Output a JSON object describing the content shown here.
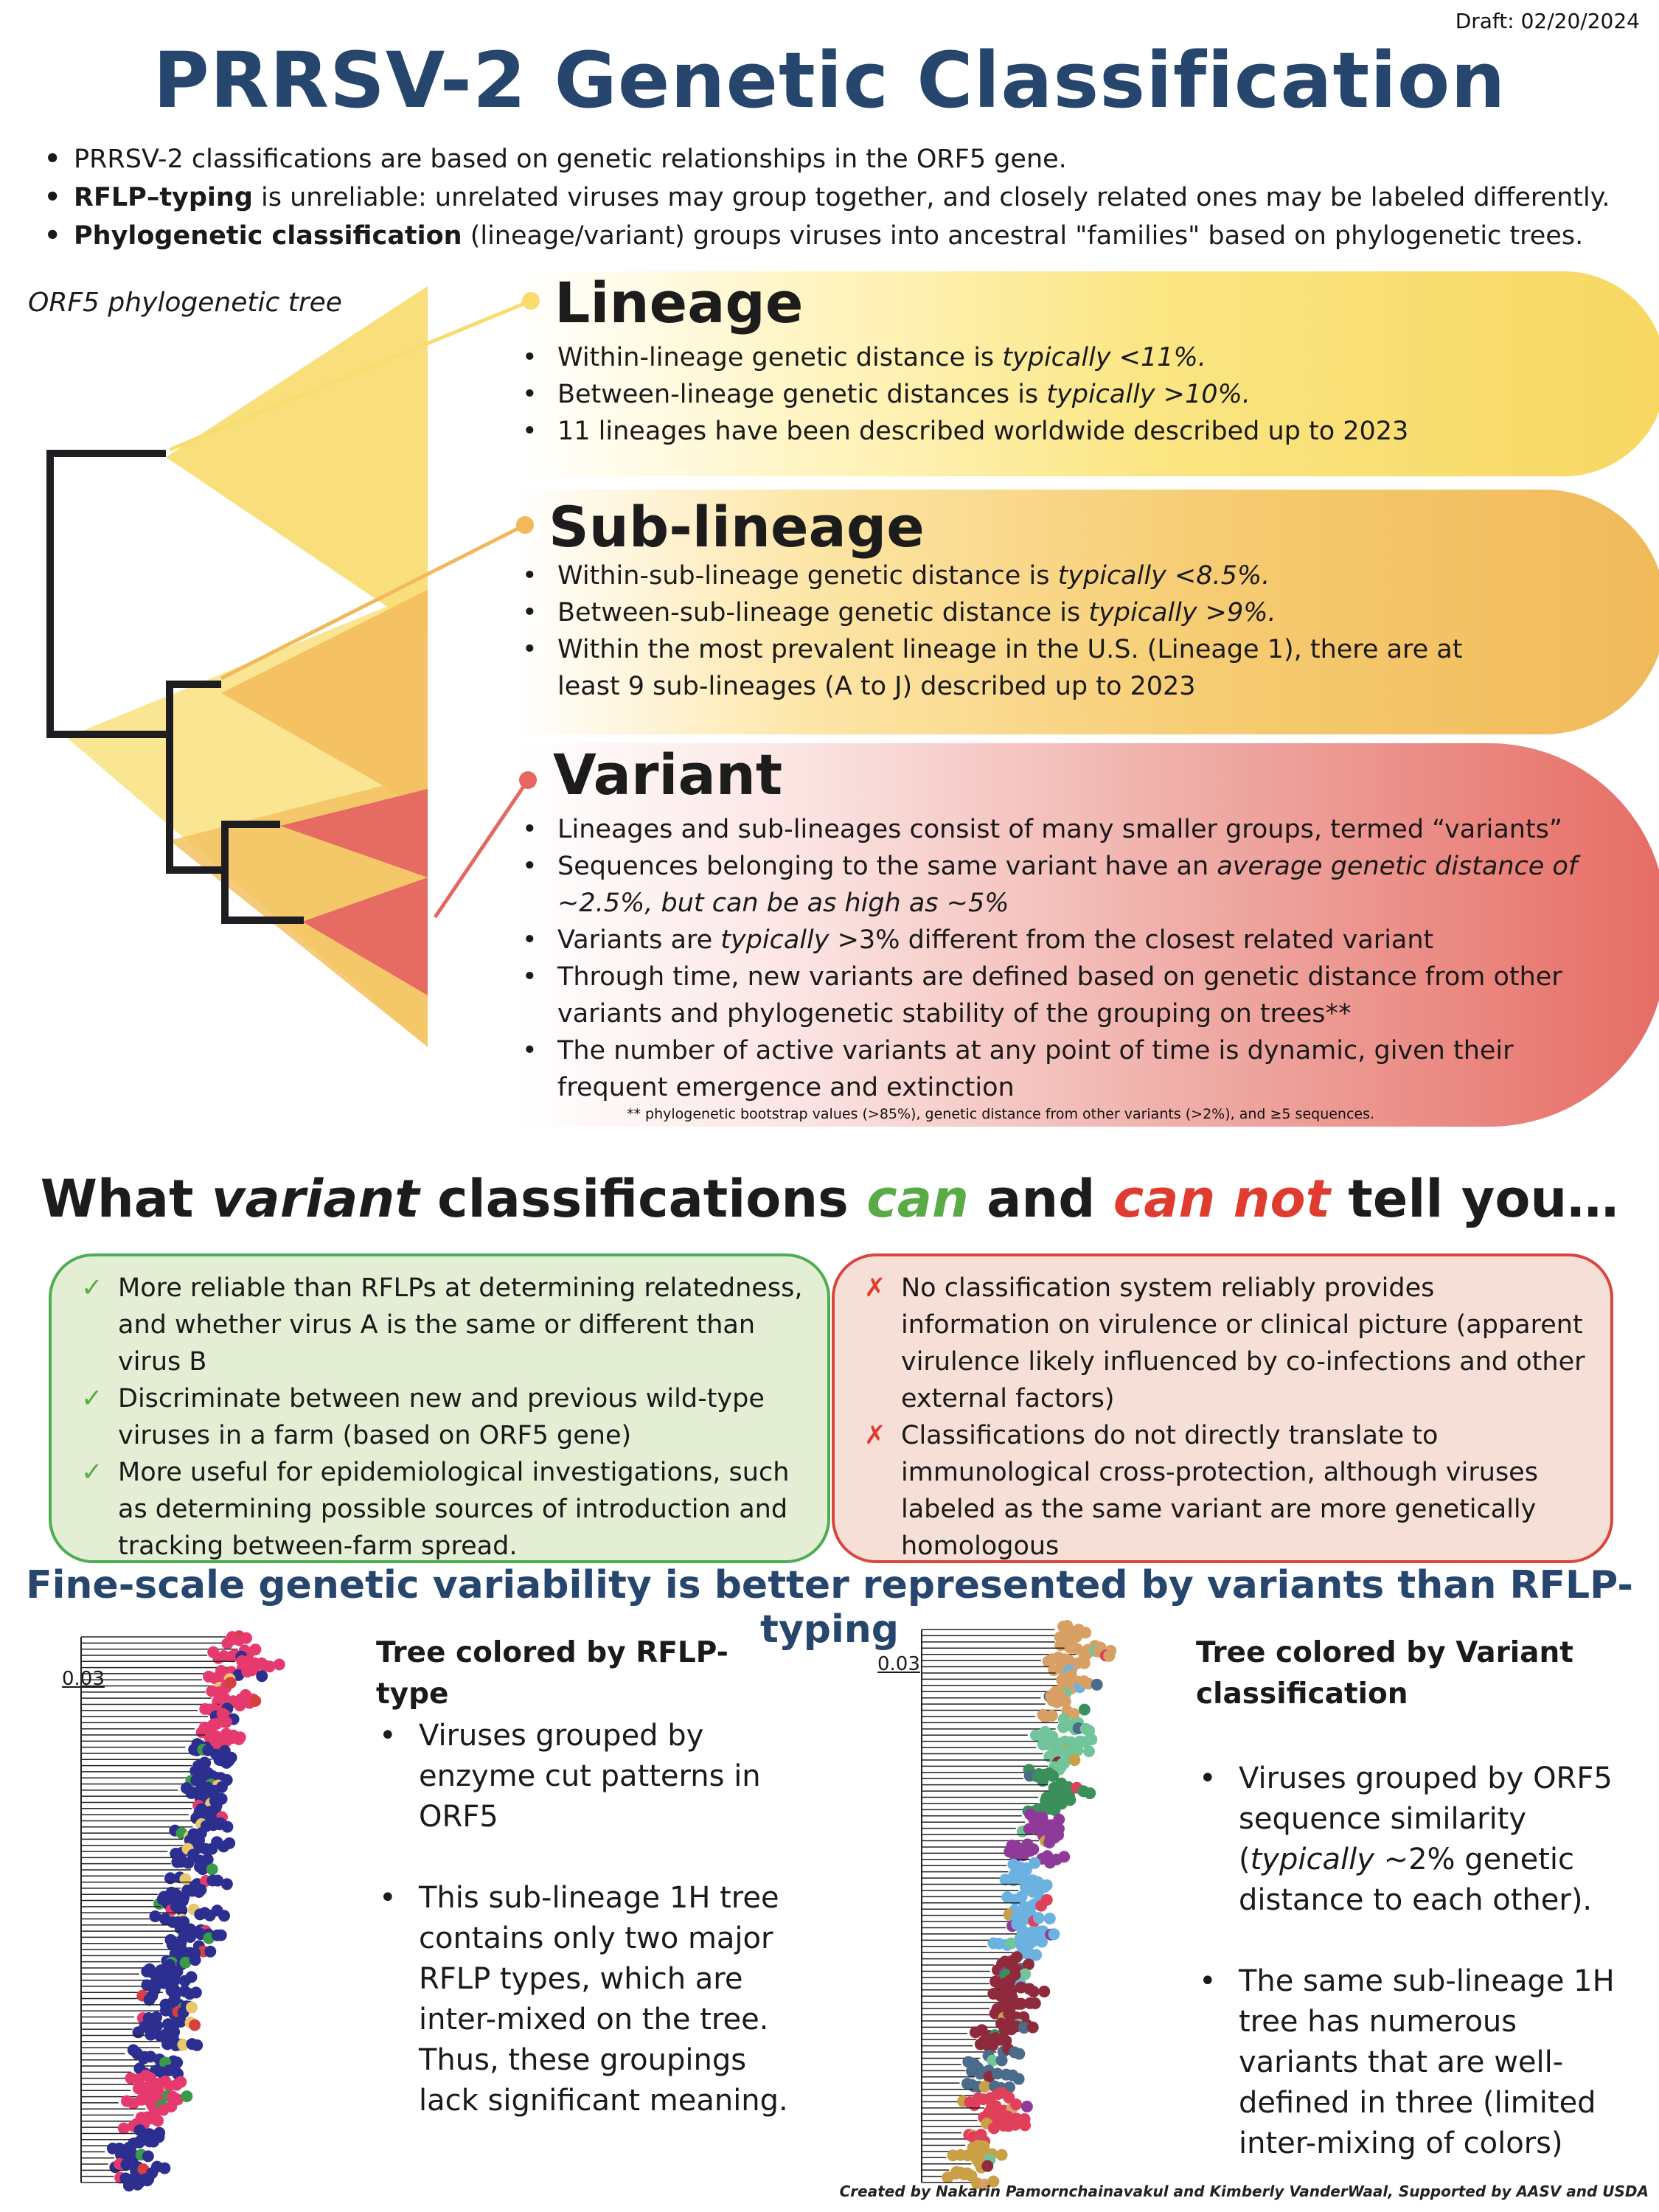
{
  "draft": "Draft: 02/20/2024",
  "title": "PRRSV-2 Genetic Classification",
  "intro": [
    {
      "bold": "",
      "text": "PRRSV-2 classifications are based on genetic relationships in the ORF5 gene."
    },
    {
      "bold": "RFLP–typing",
      "text": " is unreliable: unrelated viruses may group together, and closely related ones may be labeled differently."
    },
    {
      "bold": "Phylogenetic classification",
      "text": " (lineage/variant) groups viruses into ancestral \"families\" based on phylogenetic trees."
    }
  ],
  "tree_label": "ORF5 phylogenetic tree",
  "lineage": {
    "title": "Lineage",
    "b1_pre": "Within-lineage genetic distance is ",
    "b1_it": "typically <11%.",
    "b2_pre": "Between-lineage genetic distances is ",
    "b2_it": "typically >10%.",
    "b3": "11 lineages have been described worldwide described up to 2023"
  },
  "sublineage": {
    "title": "Sub-lineage",
    "b1_pre": "Within-sub-lineage genetic distance is ",
    "b1_it": "typically <8.5%.",
    "b2_pre": "Between-sub-lineage genetic distance is ",
    "b2_it": "typically >9%.",
    "b3": "Within the most prevalent lineage in the U.S. (Lineage 1), there are at least 9 sub-lineages (A to J) described up to 2023"
  },
  "variant": {
    "title": "Variant",
    "b1": "Lineages and sub-lineages consist of many smaller groups, termed “variants”",
    "b2_pre": "Sequences belonging to the same variant have an ",
    "b2_it": "average genetic distance of ~2.5%, but can be as high as ~5%",
    "b3_pre": "Variants are ",
    "b3_it": "typically",
    "b3_post": "  >3% different from the closest related variant",
    "b4": "Through time, new variants are defined based on genetic distance from other variants and phylogenetic stability of the grouping on trees**",
    "b5": "The number of active variants at any point of time is dynamic, given their frequent emergence and extinction",
    "footnote": "** phylogenetic bootstrap values (>85%), genetic distance from other variants (>2%), and ≥5 sequences."
  },
  "what_heading": {
    "p1": "What ",
    "p2": "variant",
    "p3": " classifications  ",
    "can": "can",
    "p4": " and ",
    "cannot": "can not",
    "p5": " tell you…"
  },
  "can_items": [
    "More reliable than RFLPs  at determining relatedness, and whether virus A is the same or different than virus B",
    "Discriminate between new and previous wild-type viruses in a farm (based on ORF5 gene)",
    "More useful for epidemiological investigations, such as determining possible sources of introduction and tracking  between-farm spread."
  ],
  "cannot_items": [
    "No classification system reliably provides information on virulence or clinical picture (apparent virulence likely influenced by co-infections and other external factors)",
    "Classifications do not directly translate to immunological cross-protection, although viruses labeled as the same variant are more genetically homologous"
  ],
  "check_mark": "✓",
  "cross_mark": "✗",
  "fine_heading": "Fine-scale genetic variability is better represented by variants than RFLP-typing",
  "left_tree": {
    "scale": "0.03",
    "heading": "Tree colored by RFLP-type",
    "b1": "Viruses grouped by enzyme cut patterns in ORF5",
    "b2": "This sub-lineage 1H tree contains only two major RFLP types, which are inter-mixed on the tree. Thus, these groupings lack significant meaning.",
    "colors": [
      "#2c2f8f",
      "#e63a6e",
      "#3a9a4a",
      "#e8c86a",
      "#d84040"
    ]
  },
  "right_tree": {
    "scale": "0.03",
    "heading": "Tree colored by Variant classification",
    "b1_pre": "Viruses grouped by ORF5 sequence  similarity (",
    "b1_it": "typically",
    "b1_post": " ~2% genetic distance to each other).",
    "b2": "The same sub-lineage 1H tree has numerous variants that are  well-defined in three (limited inter-mixing of colors)",
    "colors": [
      "#d9a066",
      "#72c49a",
      "#3a8f5a",
      "#8f3a99",
      "#6bb2e0",
      "#8e2a3c",
      "#4a6c8a",
      "#e0405a",
      "#c9a045"
    ]
  },
  "credit": "Created by Nakarin Pamornchainavakul and Kimberly VanderWaal, Supported by AASV and USDA",
  "palette": {
    "title": "#26466e",
    "lineage": "#f5d76b",
    "sublineage": "#f1b85c",
    "variant": "#e5675f",
    "can": "#4cae4f",
    "cannot": "#d8463d"
  }
}
